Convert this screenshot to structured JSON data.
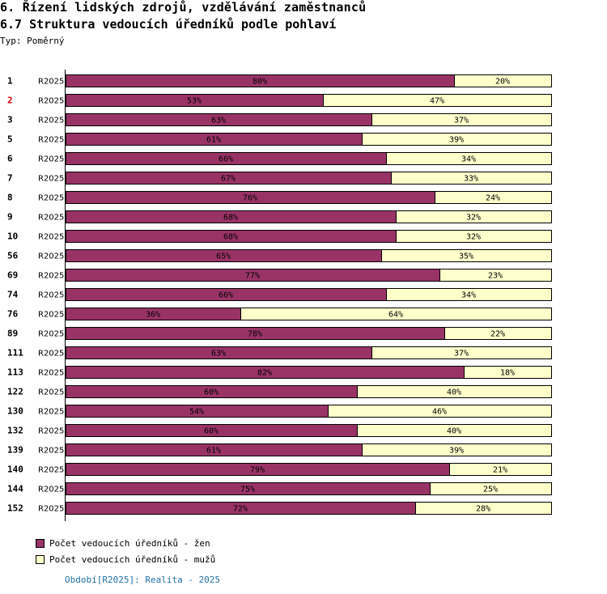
{
  "header": {
    "title": "6. Řízení lidských zdrojů, vzdělávání zaměstnanců",
    "subtitle": "6.7 Struktura vedoucích úředníků podle pohlaví",
    "type_label": "Typ: Poměrný"
  },
  "colors": {
    "women": "#993366",
    "men": "#ffffcc",
    "highlight_row_label": "#dd0000"
  },
  "chart_data": {
    "type": "bar",
    "orientation": "horizontal",
    "stacked": true,
    "normalized": true,
    "unit": "%",
    "title": "6.7 Struktura vedoucích úředníků podle pohlaví",
    "period_label": "R2025",
    "categories": [
      "1",
      "2",
      "3",
      "5",
      "6",
      "7",
      "8",
      "9",
      "10",
      "56",
      "69",
      "74",
      "76",
      "89",
      "111",
      "113",
      "122",
      "130",
      "132",
      "139",
      "140",
      "144",
      "152"
    ],
    "highlighted_category": "2",
    "series": [
      {
        "name": "Počet vedoucích úředníků - žen",
        "values": [
          80,
          53,
          63,
          61,
          66,
          67,
          76,
          68,
          68,
          65,
          77,
          66,
          36,
          78,
          63,
          82,
          60,
          54,
          60,
          61,
          79,
          75,
          72
        ]
      },
      {
        "name": "Počet vedoucích úředníků - mužů",
        "values": [
          20,
          47,
          37,
          39,
          34,
          33,
          24,
          32,
          32,
          35,
          23,
          34,
          64,
          22,
          37,
          18,
          40,
          46,
          40,
          39,
          21,
          25,
          28
        ]
      }
    ],
    "xlim": [
      0,
      100
    ],
    "legend_position": "bottom-left"
  },
  "legend": {
    "items": [
      {
        "label": "Počet vedoucích úředníků - žen"
      },
      {
        "label": "Počet vedoucích úředníků - mužů"
      }
    ]
  },
  "footer": {
    "text": "Období[R2025]: Realita - 2025"
  }
}
